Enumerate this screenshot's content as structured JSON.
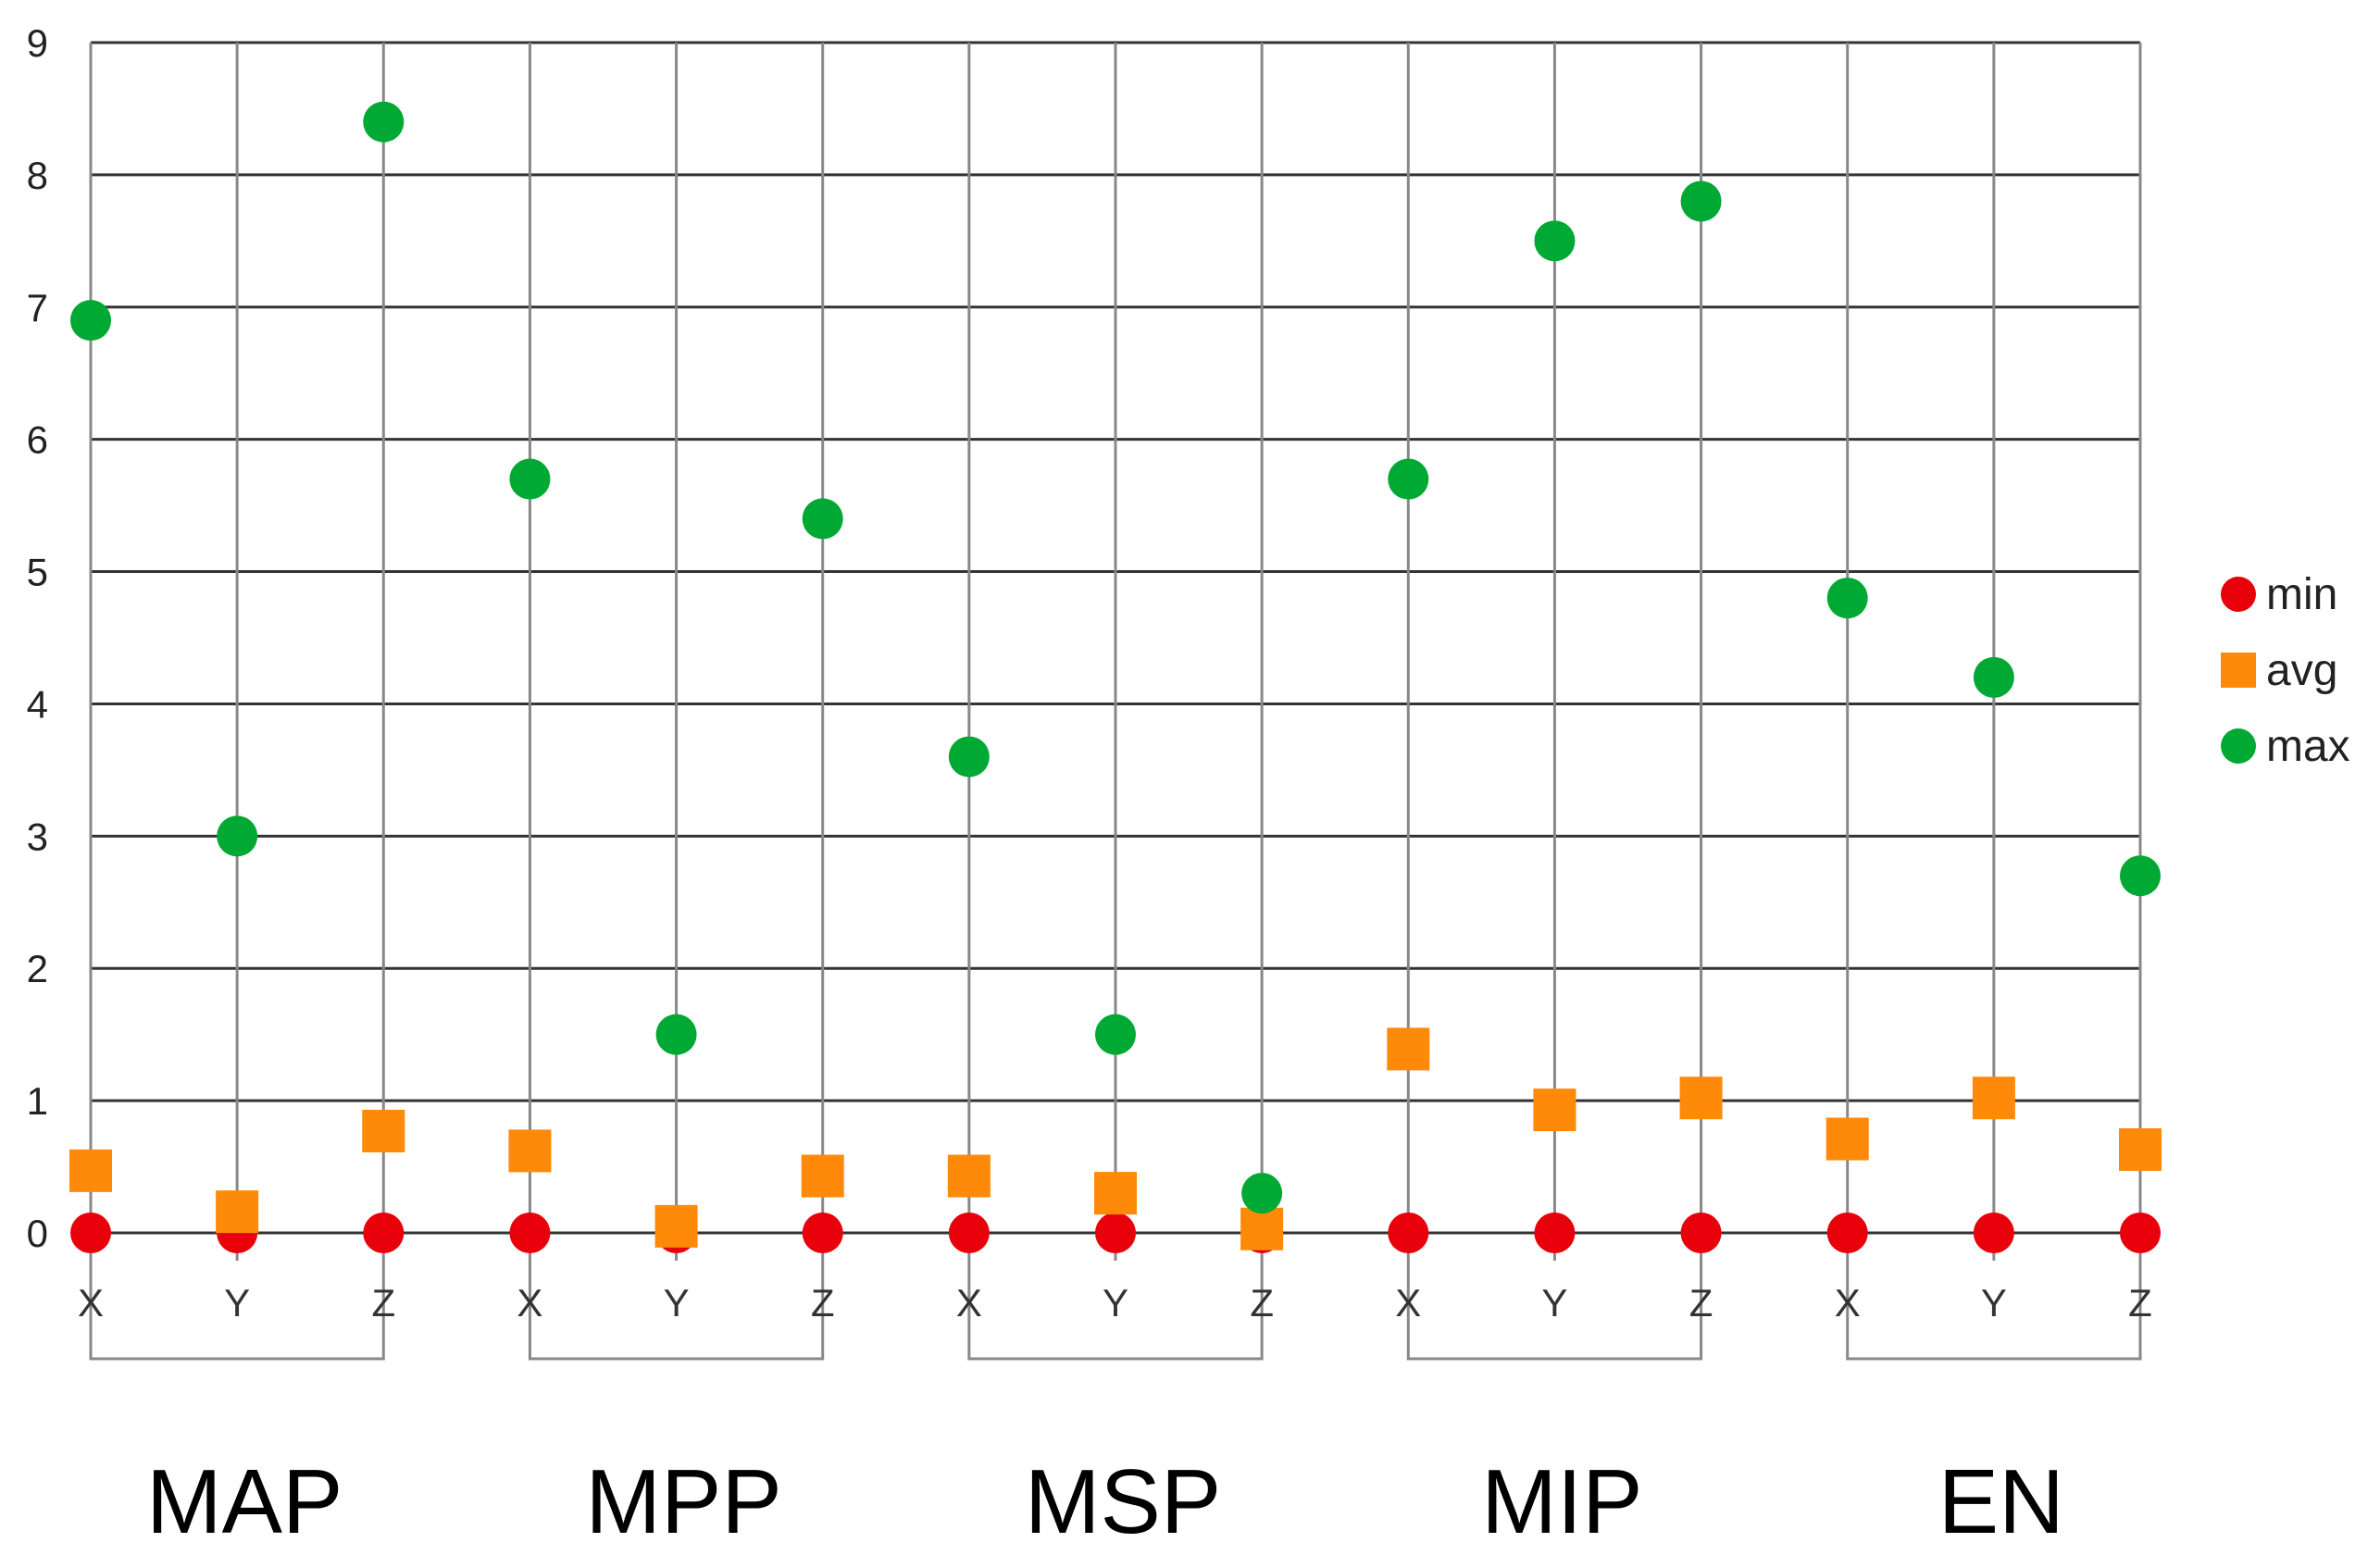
{
  "chart_data": {
    "type": "scatter",
    "title": "",
    "xlabel": "",
    "ylabel": "",
    "ylim": [
      0,
      9
    ],
    "yticks": [
      0,
      1,
      2,
      3,
      4,
      5,
      6,
      7,
      8,
      9
    ],
    "grid": true,
    "legend_position": "right",
    "groups": [
      {
        "label": "MAP",
        "categories": [
          "X",
          "Y",
          "Z"
        ]
      },
      {
        "label": "MPP",
        "categories": [
          "X",
          "Y",
          "Z"
        ]
      },
      {
        "label": "MSP",
        "categories": [
          "X",
          "Y",
          "Z"
        ]
      },
      {
        "label": "MIP",
        "categories": [
          "X",
          "Y",
          "Z"
        ]
      },
      {
        "label": "EN",
        "categories": [
          "X",
          "Y",
          "Z"
        ]
      }
    ],
    "series": [
      {
        "name": "min",
        "marker": "circle",
        "color": "#e8000b",
        "values": [
          0,
          0,
          0,
          0,
          0,
          0,
          0,
          0,
          0,
          0,
          0,
          0,
          0,
          0,
          0
        ]
      },
      {
        "name": "avg",
        "marker": "square",
        "color": "#ff8a0a",
        "values": [
          0.47,
          0.16,
          0.77,
          0.62,
          0.05,
          0.43,
          0.43,
          0.3,
          0.03,
          1.39,
          0.93,
          1.02,
          0.71,
          1.02,
          0.63
        ]
      },
      {
        "name": "max",
        "marker": "circle",
        "color": "#00a933",
        "values": [
          6.9,
          3.0,
          8.4,
          5.7,
          1.5,
          5.4,
          3.6,
          1.5,
          0.3,
          5.7,
          7.5,
          7.8,
          4.8,
          4.2,
          2.7
        ]
      }
    ]
  }
}
